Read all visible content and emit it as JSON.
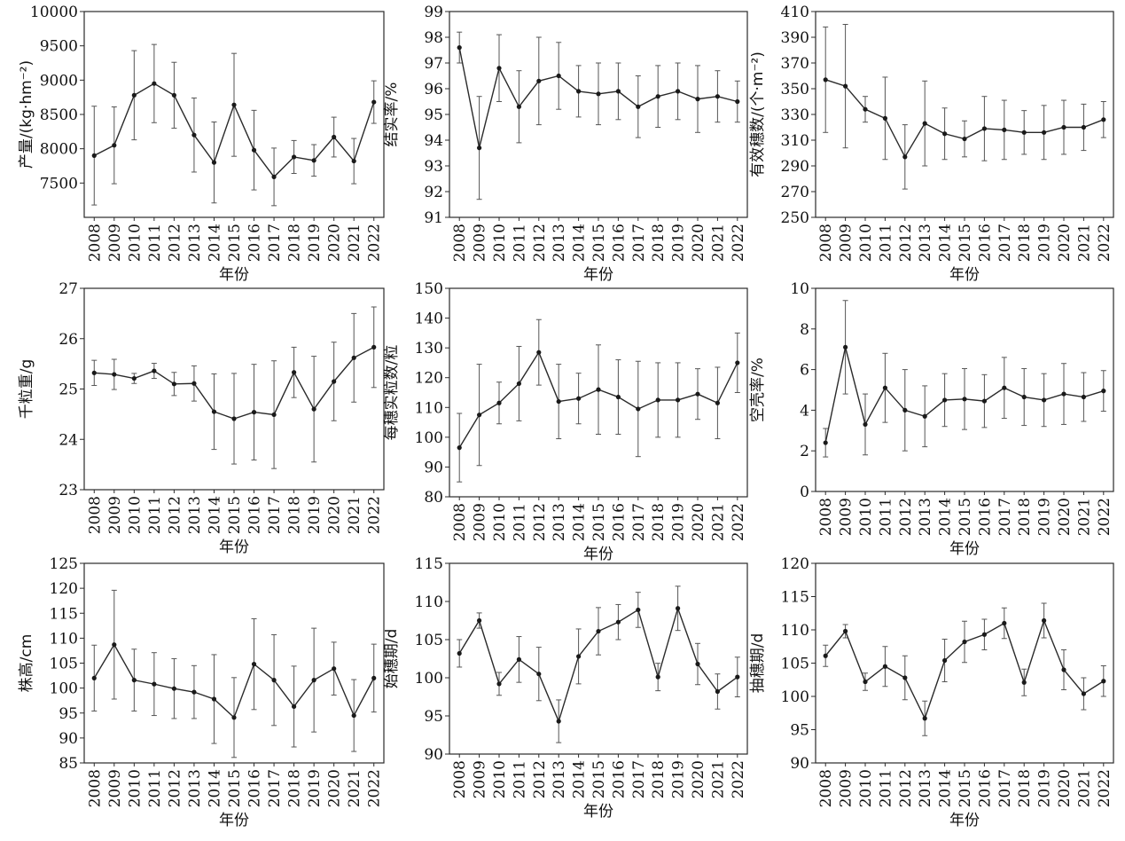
{
  "chart_data": [
    {
      "type": "line",
      "ylabel": "产量/(kg·hm⁻²)",
      "xlabel": "年份",
      "categories": [
        "2008",
        "2009",
        "2010",
        "2011",
        "2012",
        "2013",
        "2014",
        "2015",
        "2016",
        "2017",
        "2018",
        "2019",
        "2020",
        "2021",
        "2022"
      ],
      "ylim": [
        7000,
        10000
      ],
      "yticks": [
        7500,
        8000,
        8500,
        9000,
        9500,
        10000
      ],
      "values": [
        7900,
        8050,
        8780,
        8950,
        8780,
        8200,
        7800,
        8640,
        7980,
        7590,
        7880,
        7830,
        8170,
        7820,
        8680
      ],
      "err": [
        720,
        560,
        650,
        570,
        480,
        540,
        590,
        750,
        580,
        420,
        240,
        230,
        290,
        330,
        310
      ]
    },
    {
      "type": "line",
      "ylabel": "结实率/%",
      "xlabel": "年份",
      "categories": [
        "2008",
        "2009",
        "2010",
        "2011",
        "2012",
        "2013",
        "2014",
        "2015",
        "2016",
        "2017",
        "2018",
        "2019",
        "2020",
        "2021",
        "2022"
      ],
      "ylim": [
        91,
        99
      ],
      "yticks": [
        91,
        92,
        93,
        94,
        95,
        96,
        97,
        98,
        99
      ],
      "values": [
        97.6,
        93.7,
        96.8,
        95.3,
        96.3,
        96.5,
        95.9,
        95.8,
        95.9,
        95.3,
        95.7,
        95.9,
        95.6,
        95.7,
        95.5
      ],
      "err": [
        0.6,
        2.0,
        1.3,
        1.4,
        1.7,
        1.3,
        1.0,
        1.2,
        1.1,
        1.2,
        1.2,
        1.1,
        1.3,
        1.0,
        0.8
      ]
    },
    {
      "type": "line",
      "ylabel": "有效穗数/(个·m⁻²)",
      "xlabel": "年份",
      "categories": [
        "2008",
        "2009",
        "2010",
        "2011",
        "2012",
        "2013",
        "2014",
        "2015",
        "2016",
        "2017",
        "2018",
        "2019",
        "2020",
        "2021",
        "2022"
      ],
      "ylim": [
        250,
        410
      ],
      "yticks": [
        250,
        270,
        290,
        310,
        330,
        350,
        370,
        390,
        410
      ],
      "values": [
        357,
        352,
        334,
        327,
        297,
        323,
        315,
        311,
        319,
        318,
        316,
        316,
        320,
        320,
        326
      ],
      "err": [
        41,
        48,
        10,
        32,
        25,
        33,
        20,
        14,
        25,
        23,
        17,
        21,
        21,
        18,
        14
      ]
    },
    {
      "type": "line",
      "ylabel": "千粒重/g",
      "xlabel": "年份",
      "categories": [
        "2008",
        "2009",
        "2010",
        "2011",
        "2012",
        "2013",
        "2014",
        "2015",
        "2016",
        "2017",
        "2018",
        "2019",
        "2020",
        "2021",
        "2022"
      ],
      "ylim": [
        23,
        27
      ],
      "yticks": [
        23,
        24,
        25,
        26,
        27
      ],
      "values": [
        25.32,
        25.29,
        25.21,
        25.36,
        25.1,
        25.11,
        24.55,
        24.41,
        24.54,
        24.49,
        25.33,
        24.6,
        25.15,
        25.62,
        25.83
      ],
      "err": [
        0.25,
        0.3,
        0.1,
        0.15,
        0.23,
        0.35,
        0.75,
        0.9,
        0.95,
        1.07,
        0.5,
        1.05,
        0.78,
        0.88,
        0.8
      ]
    },
    {
      "type": "line",
      "ylabel": "每穗实粒数/粒",
      "xlabel": "年份",
      "categories": [
        "2008",
        "2009",
        "2010",
        "2011",
        "2012",
        "2013",
        "2014",
        "2015",
        "2016",
        "2017",
        "2018",
        "2019",
        "2020",
        "2021",
        "2022"
      ],
      "ylim": [
        80,
        150
      ],
      "yticks": [
        80,
        90,
        100,
        110,
        120,
        130,
        140,
        150
      ],
      "values": [
        96.5,
        107.5,
        111.5,
        118,
        128.5,
        112,
        113,
        116,
        113.5,
        109.5,
        112.5,
        112.5,
        114.5,
        111.5,
        125
      ],
      "err": [
        11.5,
        17,
        7,
        12.5,
        11,
        12.5,
        8.5,
        15,
        12.5,
        16,
        12.5,
        12.5,
        8.5,
        12,
        10
      ]
    },
    {
      "type": "line",
      "ylabel": "空壳率/%",
      "xlabel": "年份",
      "categories": [
        "2008",
        "2009",
        "2010",
        "2011",
        "2012",
        "2013",
        "2014",
        "2015",
        "2016",
        "2017",
        "2018",
        "2019",
        "2020",
        "2021",
        "2022"
      ],
      "ylim": [
        0,
        10
      ],
      "yticks": [
        0,
        2,
        4,
        6,
        8,
        10
      ],
      "values": [
        2.4,
        7.1,
        3.3,
        5.1,
        4.0,
        3.7,
        4.5,
        4.55,
        4.45,
        5.1,
        4.65,
        4.5,
        4.8,
        4.65,
        4.95
      ],
      "err": [
        0.7,
        2.3,
        1.5,
        1.7,
        2.0,
        1.5,
        1.3,
        1.5,
        1.3,
        1.5,
        1.4,
        1.3,
        1.5,
        1.2,
        1.0
      ]
    },
    {
      "type": "line",
      "ylabel": "株高/cm",
      "xlabel": "年份",
      "categories": [
        "2008",
        "2009",
        "2010",
        "2011",
        "2012",
        "2013",
        "2014",
        "2015",
        "2016",
        "2017",
        "2018",
        "2019",
        "2020",
        "2021",
        "2022"
      ],
      "ylim": [
        85,
        125
      ],
      "yticks": [
        85,
        90,
        95,
        100,
        105,
        110,
        115,
        120,
        125
      ],
      "values": [
        102,
        108.7,
        101.6,
        100.8,
        99.9,
        99.2,
        97.8,
        94.1,
        104.8,
        101.6,
        96.3,
        101.6,
        103.9,
        94.5,
        102
      ],
      "err": [
        6.6,
        10.9,
        6.2,
        6.3,
        6,
        5.3,
        8.9,
        8,
        9.1,
        9.1,
        8.1,
        10.4,
        5.3,
        7.2,
        6.8
      ]
    },
    {
      "type": "line",
      "ylabel": "始穗期/d",
      "xlabel": "年份",
      "categories": [
        "2008",
        "2009",
        "2010",
        "2011",
        "2012",
        "2013",
        "2014",
        "2015",
        "2016",
        "2017",
        "2018",
        "2019",
        "2020",
        "2021",
        "2022"
      ],
      "ylim": [
        90,
        115
      ],
      "yticks": [
        90,
        95,
        100,
        105,
        110,
        115
      ],
      "values": [
        103.2,
        107.5,
        99.2,
        102.4,
        100.5,
        94.3,
        102.8,
        106.1,
        107.3,
        108.9,
        100.1,
        109.1,
        101.8,
        98.2,
        100.1
      ],
      "err": [
        1.8,
        1.0,
        1.5,
        3.0,
        3.5,
        2.8,
        3.6,
        3.1,
        2.3,
        2.3,
        1.8,
        2.9,
        2.7,
        2.3,
        2.6
      ]
    },
    {
      "type": "line",
      "ylabel": "抽穗期/d",
      "xlabel": "年份",
      "categories": [
        "2008",
        "2009",
        "2010",
        "2011",
        "2012",
        "2013",
        "2014",
        "2015",
        "2016",
        "2017",
        "2018",
        "2019",
        "2020",
        "2021",
        "2022"
      ],
      "ylim": [
        90,
        120
      ],
      "yticks": [
        90,
        95,
        100,
        105,
        110,
        115,
        120
      ],
      "values": [
        106.1,
        109.8,
        102.2,
        104.5,
        102.8,
        96.7,
        105.4,
        108.2,
        109.3,
        111,
        102.1,
        111.4,
        104,
        100.4,
        102.3
      ],
      "err": [
        1.6,
        1.0,
        1.3,
        3.0,
        3.3,
        2.6,
        3.2,
        3.1,
        2.3,
        2.3,
        2.0,
        2.6,
        3.0,
        2.4,
        2.3
      ]
    }
  ]
}
